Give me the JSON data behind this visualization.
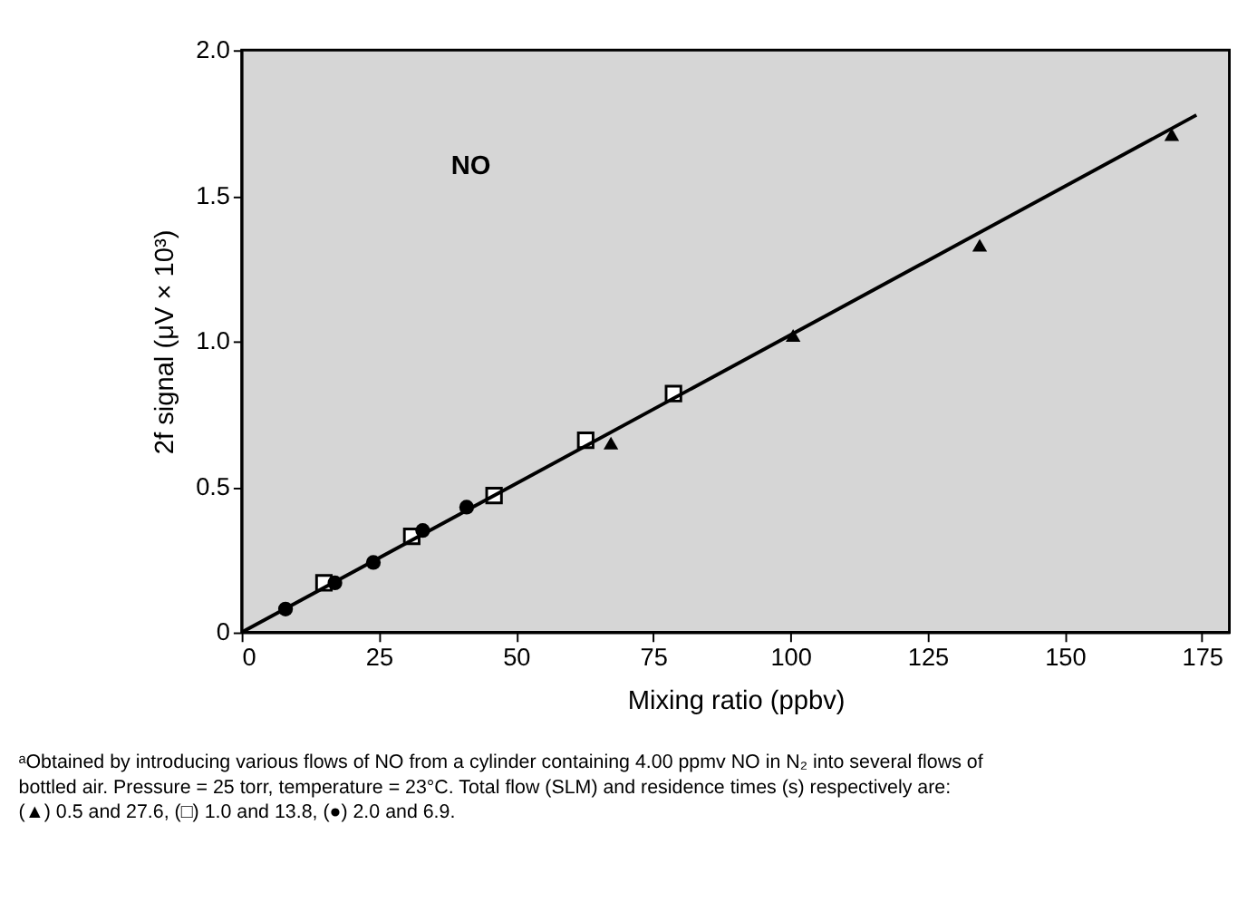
{
  "chart_data": {
    "type": "scatter",
    "xlabel": "Mixing ratio (ppbv)",
    "ylabel": "2f signal (μV × 10³)",
    "xlim": [
      0,
      180
    ],
    "xticks": [
      0,
      25,
      50,
      75,
      100,
      125,
      150,
      175
    ],
    "ylim": [
      0,
      2.0
    ],
    "yticks": [
      {
        "value": 0,
        "label": "0"
      },
      0.5,
      {
        "value": 1.0,
        "label": "1.0"
      },
      1.5,
      {
        "value": 2.0,
        "label": "2.0"
      }
    ],
    "grid": false,
    "series": [
      {
        "marker": "triangle",
        "color": "#000000",
        "x": [
          67.3,
          100.5,
          134.5,
          169.5
        ],
        "values": [
          0.65,
          1.02,
          1.33,
          1.71
        ]
      },
      {
        "marker": "square",
        "color": "#000000",
        "x": [
          15,
          31,
          46,
          62.7,
          78.7
        ],
        "values": [
          0.17,
          0.33,
          0.47,
          0.66,
          0.82
        ]
      },
      {
        "marker": "circle",
        "color": "#000000",
        "x": [
          8,
          17,
          24,
          33,
          41
        ],
        "values": [
          0.08,
          0.17,
          0.24,
          0.35,
          0.43
        ]
      },
      {
        "type": "line",
        "marker": "none",
        "line_style": "solid",
        "color": "#000000",
        "x": [
          0,
          174
        ],
        "values": [
          0,
          1.777
        ]
      }
    ],
    "annotations": [
      "NO",
      "ᵃObtained by introducing various flows of NO from a cylinder containing 4.00 ppmv NO in N₂ into several flows of bottled air. Pressure = 25 torr, temperature = 23°C. Total flow (SLM) and residence times (s) respectively are: (▲) 0.5 and 27.6, (□) 1.0 and 13.8, (●) 2.0 and 6.9."
    ]
  }
}
